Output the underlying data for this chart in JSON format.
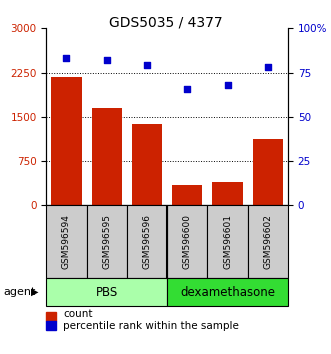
{
  "title": "GDS5035 / 4377",
  "samples": [
    "GSM596594",
    "GSM596595",
    "GSM596596",
    "GSM596600",
    "GSM596601",
    "GSM596602"
  ],
  "counts": [
    2175,
    1650,
    1375,
    350,
    390,
    1125
  ],
  "percentiles": [
    83,
    82,
    79,
    66,
    68,
    78
  ],
  "ylim_left": [
    0,
    3000
  ],
  "yticks_left": [
    0,
    750,
    1500,
    2250,
    3000
  ],
  "ylim_right": [
    0,
    100
  ],
  "yticks_right": [
    0,
    25,
    50,
    75,
    100
  ],
  "bar_color": "#cc2200",
  "dot_color": "#0000cc",
  "group1_label": "PBS",
  "group2_label": "dexamethasone",
  "group1_color": "#aaffaa",
  "group2_color": "#33dd33",
  "agent_label": "agent",
  "legend_count": "count",
  "legend_pct": "percentile rank within the sample",
  "background_color": "#ffffff",
  "title_fontsize": 10,
  "tick_fontsize": 7.5,
  "sample_box_color": "#cccccc",
  "gridline_color": "black",
  "dotgrid_ticks": [
    750,
    1500,
    2250
  ]
}
